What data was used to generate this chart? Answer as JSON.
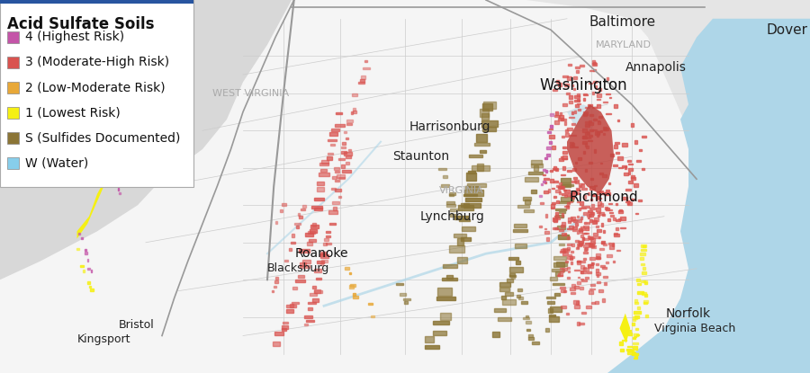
{
  "title": "Acid Sulfate Soils",
  "legend_items": [
    {
      "label": "4 (Highest Risk)",
      "color": "#c455a8"
    },
    {
      "label": "3 (Moderate-High Risk)",
      "color": "#d9534f"
    },
    {
      "label": "2 (Low-Moderate Risk)",
      "color": "#e8a838"
    },
    {
      "label": "1 (Lowest Risk)",
      "color": "#f5f013"
    },
    {
      "label": "S (Sulfides Documented)",
      "color": "#8b7536"
    },
    {
      "label": "W (Water)",
      "color": "#87ceeb"
    }
  ],
  "bg_land_outer": "#d8d8d8",
  "bg_land_va": "#f5f5f5",
  "bg_land_md": "#e8e8e8",
  "bg_water": "#aed6e8",
  "county_line_color": "#bbbbbb",
  "state_border_color": "#999999",
  "title_fontsize": 12,
  "label_fontsize": 10,
  "fig_width": 9.0,
  "fig_height": 4.15,
  "dpi": 100
}
